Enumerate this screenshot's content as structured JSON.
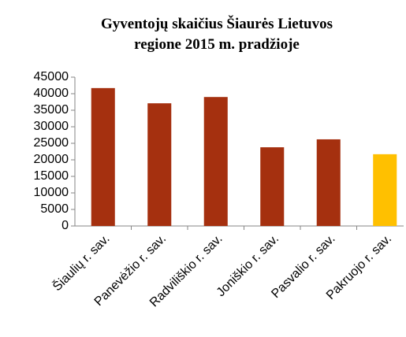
{
  "chart_data": {
    "type": "bar",
    "title": "Gyventojų skaičius Šiaurės Lietuvos regione 2015 m. pradžioje",
    "categories": [
      "Šiaulių r. sav.",
      "Panevėžio r. sav.",
      "Radviliškio r. sav.",
      "Joniškio r. sav.",
      "Pasvalio r. sav.",
      "Pakruojo r. sav."
    ],
    "values": [
      41700,
      37100,
      39000,
      23800,
      26200,
      21700
    ],
    "colors": [
      "#a5300f",
      "#a5300f",
      "#a5300f",
      "#a5300f",
      "#a5300f",
      "#ffc000"
    ],
    "ylim": [
      0,
      45000
    ],
    "yticks": [
      0,
      5000,
      10000,
      15000,
      20000,
      25000,
      30000,
      35000,
      40000,
      45000
    ],
    "grid": false
  }
}
